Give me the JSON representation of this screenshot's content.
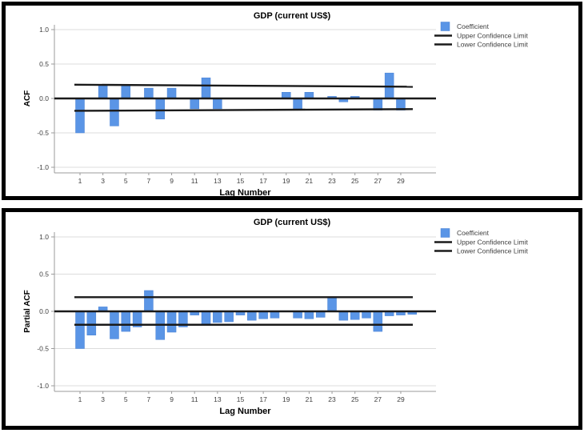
{
  "page": {
    "background_color": "#ffffff",
    "panel_border_color": "#000000"
  },
  "colors": {
    "bar_fill": "#5A95E6",
    "bar_stroke": "#4A82D4",
    "reference_line": "#1a1a1a",
    "gridline": "#dcdcdc",
    "axis_line": "#9b9b9b",
    "tick_text": "#404040",
    "title_text": "#000000"
  },
  "chart_data": [
    {
      "type": "bar",
      "title": "GDP (current US$)",
      "ylabel": "ACF",
      "xlabel": "Lag Number",
      "legend": [
        {
          "label": "Coefficient",
          "swatch": "square"
        },
        {
          "label": "Upper Confidence Limit",
          "swatch": "line"
        },
        {
          "label": "Lower Confidence Limit",
          "swatch": "line"
        }
      ],
      "ylim": [
        -1.0,
        1.0
      ],
      "ytick_values": [
        1.0,
        0.5,
        0.0,
        -0.5,
        -1.0
      ],
      "ytick_labels": [
        "1.0",
        "0.5",
        "0.0",
        "-0.5",
        "-1.0"
      ],
      "xtick_labels": [
        "1",
        "3",
        "5",
        "7",
        "9",
        "11",
        "13",
        "15",
        "17",
        "19",
        "21",
        "23",
        "25",
        "27",
        "29"
      ],
      "lags": [
        1,
        2,
        3,
        4,
        5,
        6,
        7,
        8,
        9,
        10,
        11,
        12,
        13,
        14,
        15,
        16,
        17,
        18,
        19,
        20,
        21,
        22,
        23,
        24,
        25,
        26,
        27,
        28,
        29,
        30
      ],
      "values": [
        -0.5,
        0.0,
        0.2,
        -0.4,
        0.2,
        0.0,
        0.15,
        -0.3,
        0.15,
        0.0,
        -0.15,
        0.3,
        -0.15,
        0.0,
        0.0,
        0.0,
        0.0,
        0.0,
        0.09,
        -0.15,
        0.09,
        0.0,
        0.03,
        -0.05,
        0.03,
        0.0,
        -0.17,
        0.37,
        -0.17,
        0.0
      ],
      "upper_confidence": {
        "start": 0.2,
        "end": 0.17
      },
      "lower_confidence": {
        "start": -0.18,
        "end": -0.155
      },
      "grid": "horizontal light gridlines at -1.0, -0.5, 0.5, 1.0",
      "legend_position": "top-right"
    },
    {
      "type": "bar",
      "title": "GDP (current US$)",
      "ylabel": "Partial ACF",
      "xlabel": "Lag Number",
      "legend": [
        {
          "label": "Coefficient",
          "swatch": "square"
        },
        {
          "label": "Upper Confidence Limit",
          "swatch": "line"
        },
        {
          "label": "Lower Confidence Limit",
          "swatch": "line"
        }
      ],
      "ylim": [
        -1.0,
        1.0
      ],
      "ytick_values": [
        1.0,
        0.5,
        0.0,
        -0.5,
        -1.0
      ],
      "ytick_labels": [
        "1.0",
        "0.5",
        "0.0",
        "-0.5",
        "-1.0"
      ],
      "xtick_labels": [
        "1",
        "3",
        "5",
        "7",
        "9",
        "11",
        "13",
        "15",
        "17",
        "19",
        "21",
        "23",
        "25",
        "27",
        "29"
      ],
      "lags": [
        1,
        2,
        3,
        4,
        5,
        6,
        7,
        8,
        9,
        10,
        11,
        12,
        13,
        14,
        15,
        16,
        17,
        18,
        19,
        20,
        21,
        22,
        23,
        24,
        25,
        26,
        27,
        28,
        29,
        30
      ],
      "values": [
        -0.5,
        -0.32,
        0.06,
        -0.37,
        -0.27,
        -0.21,
        0.28,
        -0.38,
        -0.28,
        -0.21,
        -0.05,
        -0.19,
        -0.15,
        -0.14,
        -0.05,
        -0.12,
        -0.1,
        -0.09,
        0.0,
        -0.09,
        -0.1,
        -0.08,
        0.19,
        -0.12,
        -0.11,
        -0.09,
        -0.27,
        -0.06,
        -0.05,
        -0.04
      ],
      "upper_confidence": {
        "start": 0.19,
        "end": 0.19
      },
      "lower_confidence": {
        "start": -0.18,
        "end": -0.18
      },
      "grid": "horizontal light gridlines at -1.0, -0.5, 0.5, 1.0",
      "legend_position": "top-right"
    }
  ]
}
